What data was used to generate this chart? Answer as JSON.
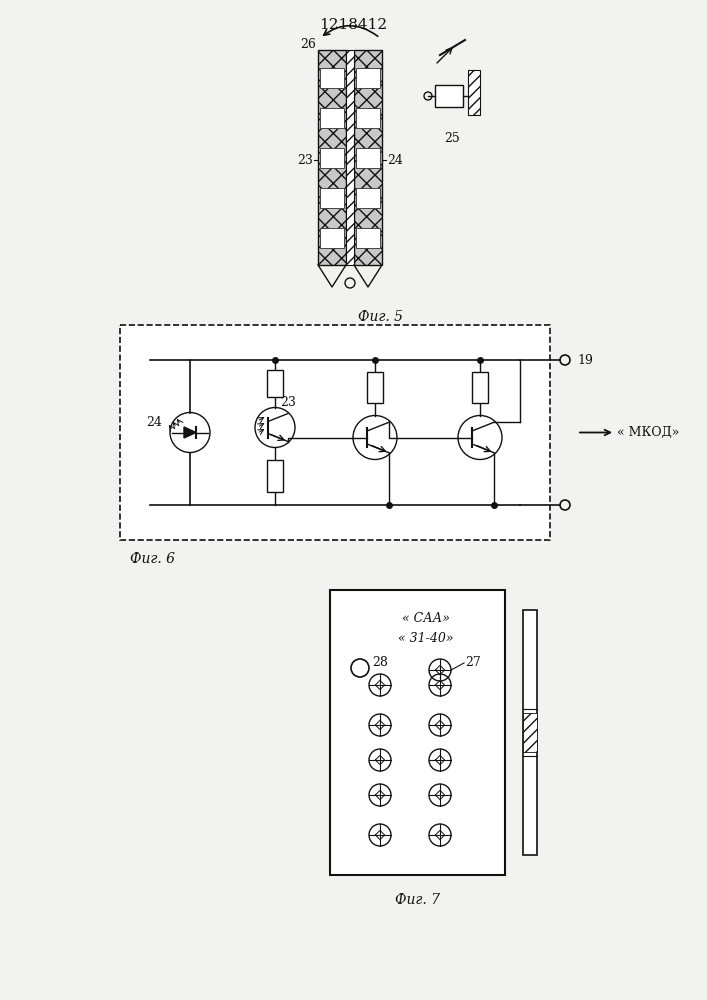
{
  "title": "1218412",
  "fig5_label": "Фиг. 5",
  "fig6_label": "Фиг. 6",
  "fig7_label": "Фиг. 7",
  "label_26": "26",
  "label_25": "25",
  "label_23": "23",
  "label_24": "24",
  "label_19": "19",
  "label_27": "27",
  "label_28": "28",
  "mkod_label": "« МКОД»",
  "saa_line1": "« САА»",
  "saa_line2": "« 31-40»",
  "bg_color": "#f2f2ee",
  "line_color": "#111111"
}
